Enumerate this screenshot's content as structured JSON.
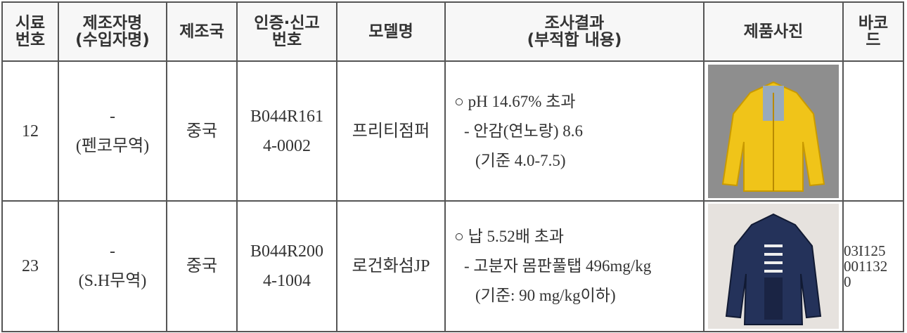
{
  "table": {
    "header": [
      [
        "시료",
        "번호"
      ],
      [
        "제조자명",
        "(수입자명)"
      ],
      [
        "제조국"
      ],
      [
        "인증·신고",
        "번호"
      ],
      [
        "모델명"
      ],
      [
        "조사결과",
        "(부적합 내용)"
      ],
      [
        "제품사진"
      ],
      [
        "바코",
        "드"
      ]
    ],
    "rows": [
      {
        "number": "12",
        "maker": [
          "-",
          "(펜코무역)"
        ],
        "country": "중국",
        "cert": [
          "B044R161",
          "4-0002"
        ],
        "model": "프리티점퍼",
        "result": [
          "○ pH 14.67% 초과",
          "- 안감(연노랑) 8.6",
          "(기준 4.0-7.5)"
        ]
      },
      {
        "number": "23",
        "maker": [
          "-",
          "(S.H무역)"
        ],
        "country": "중국",
        "cert": [
          "B044R200",
          "4-1004"
        ],
        "model": "로건화섬JP",
        "result": [
          "○ 납 5.52배 초과",
          "- 고분자 몸판풀탭 496mg/kg",
          "(기준: 90 mg/kg이하)"
        ],
        "barcode": [
          "03I125",
          "001132",
          "0"
        ]
      }
    ]
  }
}
